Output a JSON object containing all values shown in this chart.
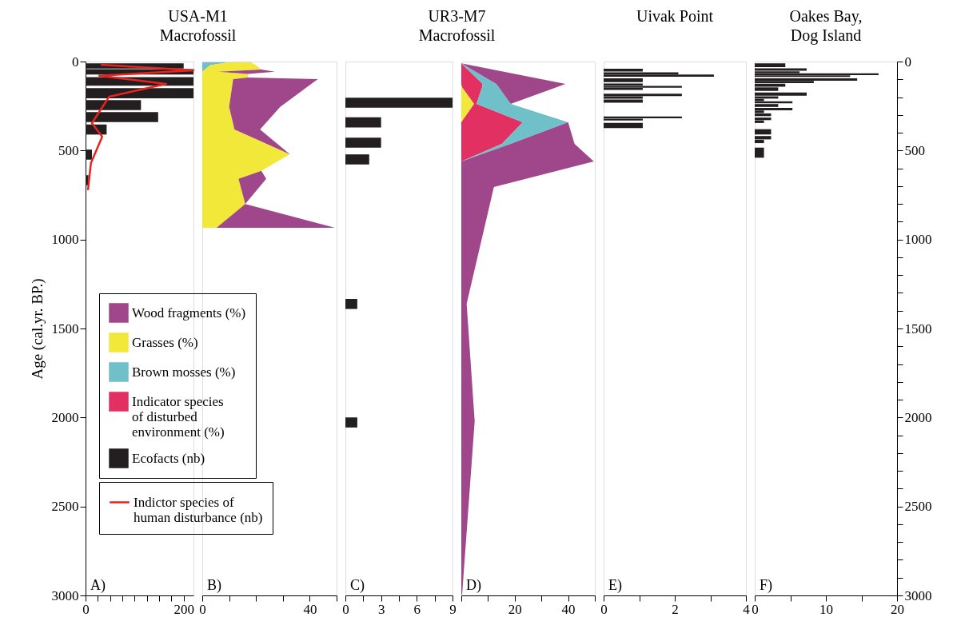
{
  "chart_data": [
    {
      "type": "bar",
      "orientation": "horizontal",
      "title": "USA-M1\nMacrofossil",
      "ylabel": "Age (cal.yr. BP.)",
      "x": [
        25,
        58,
        112,
        178,
        245,
        312,
        382,
        523,
        667
      ],
      "series": [
        {
          "name": "Ecofacts (nb)",
          "color": "#231f20",
          "values": [
            200,
            220,
            220,
            220,
            113,
            148,
            43,
            13,
            6
          ]
        },
        {
          "name": "Indictor species of\nhuman disturbance (nb)",
          "type": "line",
          "color": "#e8231f",
          "x": [
            18,
            49,
            80,
            126,
            198,
            346,
            422,
            570,
            723
          ],
          "values": [
            31,
            220,
            28,
            164,
            48,
            13,
            34,
            11,
            5
          ]
        }
      ],
      "xlim": [
        0,
        220
      ],
      "xticks": [
        0,
        {
          "value": 25,
          "label": null
        },
        {
          "value": 50,
          "label": null
        },
        {
          "value": 75,
          "label": null
        },
        {
          "value": 100,
          "label": null
        },
        {
          "value": 125,
          "label": null
        },
        {
          "value": 150,
          "label": null
        },
        {
          "value": 175,
          "label": null
        },
        200
      ],
      "ylim": [
        3000,
        0
      ],
      "yticks": [
        0,
        500,
        1000,
        1500,
        2000,
        2500,
        3000
      ],
      "legend": "bottom right",
      "annotations": [
        "A)"
      ]
    },
    {
      "type": "area",
      "orientation": "horizontal",
      "stacked": true,
      "x": [
        5,
        20,
        45,
        57,
        70,
        90,
        99,
        255,
        382,
        521,
        614,
        659,
        800,
        934
      ],
      "series": [
        {
          "name": "Brown mosses (%)",
          "color": "#6fc0c8",
          "values": [
            10,
            3,
            1,
            0,
            0,
            0,
            0,
            0,
            0,
            0,
            0,
            0,
            0,
            0
          ]
        },
        {
          "name": "Grasses (%)",
          "color": "#f2e83a",
          "values": [
            8,
            17,
            21,
            6,
            17,
            17,
            11.5,
            10,
            12,
            32.6,
            22,
            13.5,
            16,
            5.3
          ]
        },
        {
          "name": "Wood fragments (%)",
          "color": "#a0468a",
          "values": [
            0,
            0,
            0,
            21,
            0,
            0,
            31.5,
            19,
            9.5,
            0,
            0,
            10.3,
            0,
            44.1
          ]
        }
      ],
      "xlim": [
        0,
        50
      ],
      "xticks": [
        0,
        {
          "value": 10,
          "label": null
        },
        {
          "value": 20,
          "label": null
        },
        {
          "value": 30,
          "label": null
        },
        40,
        {
          "value": 50,
          "label": null
        }
      ],
      "ylim": [
        3000,
        0
      ],
      "tick_labels": "x",
      "legend": "bottom left",
      "annotations": [
        "B)"
      ]
    },
    {
      "type": "bar",
      "orientation": "horizontal",
      "title": "UR3-M7\nMacrofossil",
      "x": [
        231,
        342,
        456,
        550,
        1362,
        2028
      ],
      "series": [
        {
          "name": "Ecofacts (nb)",
          "color": "#231f20",
          "values": [
            9,
            3,
            3,
            2,
            1,
            1
          ]
        }
      ],
      "xlim": [
        0,
        9
      ],
      "xticks": [
        0,
        {
          "value": 1.5,
          "label": null
        },
        3,
        {
          "value": 4.5,
          "label": null
        },
        6,
        {
          "value": 7.5,
          "label": null
        },
        9
      ],
      "ylim": [
        3000,
        0
      ],
      "tick_labels": "x",
      "annotations": [
        "C)"
      ]
    },
    {
      "type": "area",
      "orientation": "horizontal",
      "stacked": true,
      "x": [
        10,
        126,
        144,
        238,
        341,
        463,
        561,
        705,
        1361,
        2021,
        2995
      ],
      "series": [
        {
          "name": "Grasses (%)",
          "color": "#f2e83a",
          "values": [
            0,
            0,
            0.3,
            4.8,
            0,
            0,
            0,
            0,
            0,
            0,
            0
          ]
        },
        {
          "name": "Indicator species\nof disturbed\nenvironment (%)",
          "color": "#e33063",
          "values": [
            0,
            8,
            7.5,
            0.9,
            23,
            15.2,
            0,
            0,
            0,
            0,
            0
          ]
        },
        {
          "name": "Brown mosses (%)",
          "color": "#6fc0c8",
          "values": [
            0,
            5.1,
            6.2,
            12.8,
            17,
            3.3,
            0,
            0,
            0,
            0,
            0
          ]
        },
        {
          "name": "Wood fragments (%)",
          "color": "#a0468a",
          "values": [
            0,
            25.9,
            21.8,
            0,
            0,
            23.9,
            49.6,
            12.2,
            2,
            5,
            0.3
          ]
        }
      ],
      "xlim": [
        0,
        50
      ],
      "xticks": [
        {
          "value": 0,
          "label": null
        },
        {
          "value": 10,
          "label": null
        },
        20,
        {
          "value": 30,
          "label": null
        },
        40,
        {
          "value": 50,
          "label": null
        }
      ],
      "ylim": [
        3000,
        0
      ],
      "tick_labels": "x",
      "annotations": [
        "D)"
      ]
    },
    {
      "type": "bar",
      "orientation": "horizontal",
      "title": "Uivak Point",
      "x": [
        48,
        66,
        79,
        105,
        129,
        142,
        154,
        187,
        202,
        222,
        314,
        326,
        359
      ],
      "series": [
        {
          "color": "#231f20",
          "values": [
            1.1,
            2.1,
            3.1,
            1.1,
            1.1,
            2.2,
            1.1,
            2.2,
            1.1,
            1.1,
            2.2,
            1.1,
            1.1
          ]
        }
      ],
      "xlim": [
        0,
        4
      ],
      "xticks": [
        0,
        {
          "value": 1,
          "label": null
        },
        2,
        {
          "value": 3,
          "label": null
        },
        4
      ],
      "ylim": [
        3000,
        0
      ],
      "tick_labels": "x",
      "annotations": [
        "E)"
      ]
    },
    {
      "type": "bar",
      "orientation": "horizontal",
      "title": "Oakes Bay,\nDog Island",
      "x": [
        21,
        45,
        60,
        71,
        82,
        101,
        115,
        133,
        155,
        183,
        202,
        216,
        229,
        247,
        267,
        282,
        299,
        322,
        338,
        395,
        428,
        449,
        512
      ],
      "series": [
        {
          "color": "#231f20",
          "values": [
            4.3,
            7.3,
            6.3,
            17.4,
            13.4,
            14.4,
            8.3,
            4.3,
            3.3,
            7.3,
            3.3,
            1.3,
            5.3,
            3.3,
            5.3,
            1.3,
            2.3,
            2.3,
            1.3,
            2.3,
            2.3,
            1.3,
            1.3
          ]
        }
      ],
      "xlim": [
        0,
        20
      ],
      "xticks": [
        0,
        {
          "value": 5,
          "label": null
        },
        10,
        {
          "value": 15,
          "label": null
        },
        20
      ],
      "ylim": [
        3000,
        0
      ],
      "yticks": [
        0,
        {
          "value": 100,
          "label": null
        },
        {
          "value": 200,
          "label": null
        },
        {
          "value": 300,
          "label": null
        },
        {
          "value": 400,
          "label": null
        },
        500,
        {
          "value": 600,
          "label": null
        },
        {
          "value": 700,
          "label": null
        },
        {
          "value": 800,
          "label": null
        },
        {
          "value": 900,
          "label": null
        },
        1000,
        {
          "value": 1100,
          "label": null
        },
        {
          "value": 1200,
          "label": null
        },
        {
          "value": 1300,
          "label": null
        },
        {
          "value": 1400,
          "label": null
        },
        1500,
        {
          "value": 1600,
          "label": null
        },
        {
          "value": 1700,
          "label": null
        },
        {
          "value": 1800,
          "label": null
        },
        {
          "value": 1900,
          "label": null
        },
        2000,
        {
          "value": 2100,
          "label": null
        },
        {
          "value": 2200,
          "label": null
        },
        {
          "value": 2300,
          "label": null
        },
        {
          "value": 2400,
          "label": null
        },
        2500,
        {
          "value": 2600,
          "label": null
        },
        {
          "value": 2700,
          "label": null
        },
        {
          "value": 2800,
          "label": null
        },
        {
          "value": 2900,
          "label": null
        },
        3000
      ],
      "annotations": [
        "F)"
      ]
    }
  ]
}
